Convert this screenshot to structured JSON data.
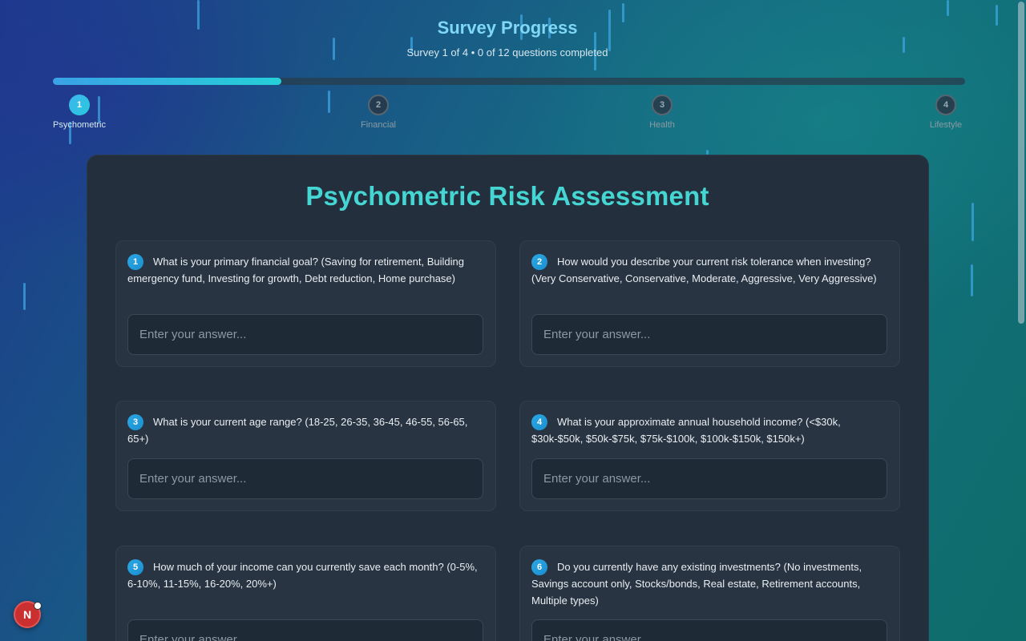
{
  "header": {
    "title": "Survey Progress",
    "subtitle": "Survey 1 of 4 • 0 of 12 questions completed",
    "progress_fraction": 0.25
  },
  "steps": [
    {
      "num": "1",
      "label": "Psychometric",
      "state": "active"
    },
    {
      "num": "2",
      "label": "Financial",
      "state": "idle"
    },
    {
      "num": "3",
      "label": "Health",
      "state": "idle"
    },
    {
      "num": "4",
      "label": "Lifestyle",
      "state": "idle"
    }
  ],
  "card": {
    "title": "Psychometric Risk Assessment"
  },
  "questions": [
    {
      "num": "1",
      "text": "What is your primary financial goal? (Saving for retirement, Building emergency fund, Investing for growth, Debt reduction, Home purchase)",
      "placeholder": "Enter your answer...",
      "value": ""
    },
    {
      "num": "2",
      "text": "How would you describe your current risk tolerance when investing? (Very Conservative, Conservative, Moderate, Aggressive, Very Aggressive)",
      "placeholder": "Enter your answer...",
      "value": ""
    },
    {
      "num": "3",
      "text": "What is your current age range? (18-25, 26-35, 36-45, 46-55, 56-65, 65+)",
      "placeholder": "Enter your answer...",
      "value": ""
    },
    {
      "num": "4",
      "text": "What is your approximate annual household income? (<$30k, $30k-$50k, $50k-$75k, $75k-$100k, $100k-$150k, $150k+)",
      "placeholder": "Enter your answer...",
      "value": ""
    },
    {
      "num": "5",
      "text": "How much of your income can you currently save each month? (0-5%, 6-10%, 11-15%, 16-20%, 20%+)",
      "placeholder": "Enter your answer...",
      "value": ""
    },
    {
      "num": "6",
      "text": "Do you currently have any existing investments? (No investments, Savings account only, Stocks/bonds, Real estate, Retirement accounts, Multiple types)",
      "placeholder": "Enter your answer...",
      "value": ""
    }
  ],
  "fab": {
    "label": "N"
  },
  "colors": {
    "accent_teal": "#45d6d3",
    "accent_blue": "#2aa8e4",
    "card_bg": "#232f3c"
  }
}
